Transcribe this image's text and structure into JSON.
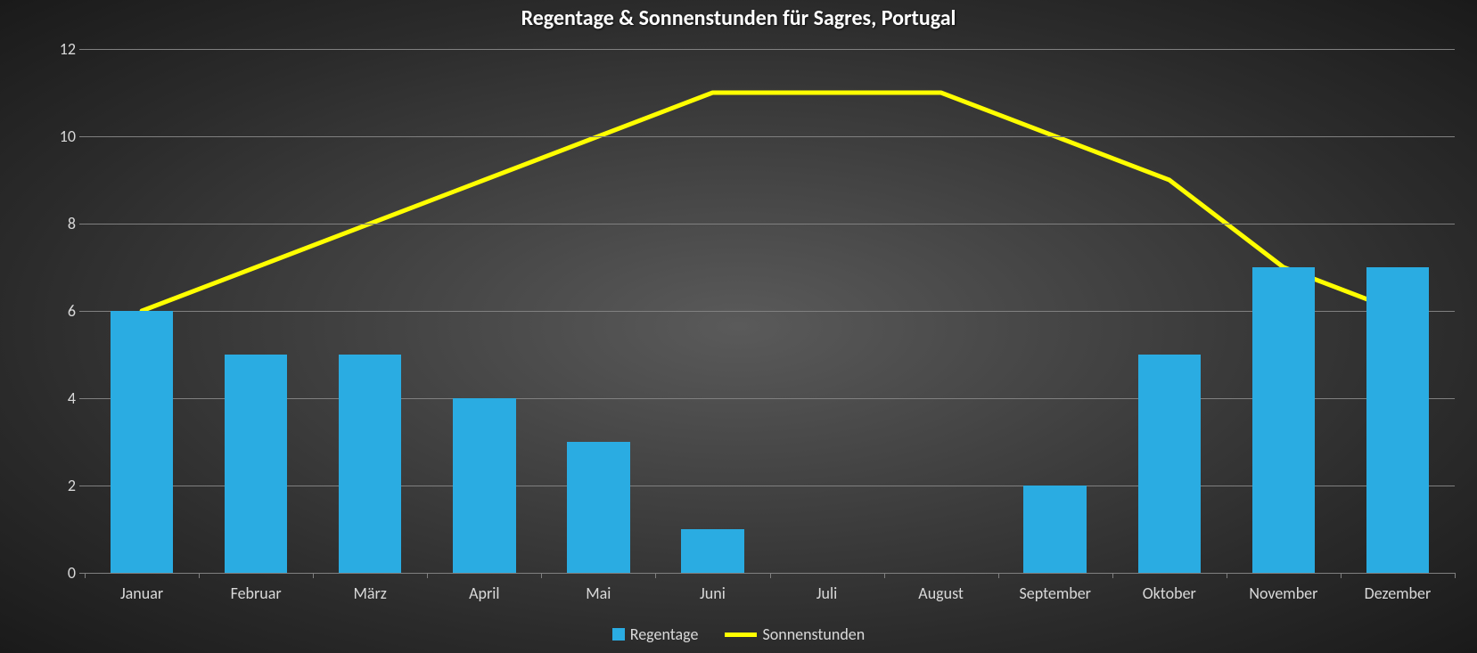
{
  "chart": {
    "type": "bar+line",
    "title": "Regentage & Sonnenstunden für Sagres, Portugal",
    "title_fontsize": 24,
    "title_color": "#ffffff",
    "background": "radial-dark",
    "categories": [
      "Januar",
      "Februar",
      "März",
      "April",
      "Mai",
      "Juni",
      "Juli",
      "August",
      "September",
      "Oktober",
      "November",
      "Dezember"
    ],
    "series": {
      "bars": {
        "label": "Regentage",
        "values": [
          6,
          5,
          5,
          4,
          3,
          1,
          0,
          0,
          2,
          5,
          7,
          7
        ],
        "color": "#2aace2",
        "bar_width_fraction": 0.55
      },
      "line": {
        "label": "Sonnenstunden",
        "values": [
          6,
          7,
          8,
          9,
          10,
          11,
          11,
          11,
          10,
          9,
          7,
          6
        ],
        "color": "#ffff00",
        "line_width": 5
      }
    },
    "yaxis": {
      "min": 0,
      "max": 12,
      "ticks": [
        0,
        2,
        4,
        6,
        8,
        10,
        12
      ],
      "fontsize": 18,
      "label_color": "#d9d9d9",
      "grid_color": "#808080"
    },
    "xaxis": {
      "fontsize": 18,
      "label_color": "#d9d9d9"
    },
    "legend": {
      "fontsize": 18,
      "label_color": "#d9d9d9"
    }
  }
}
